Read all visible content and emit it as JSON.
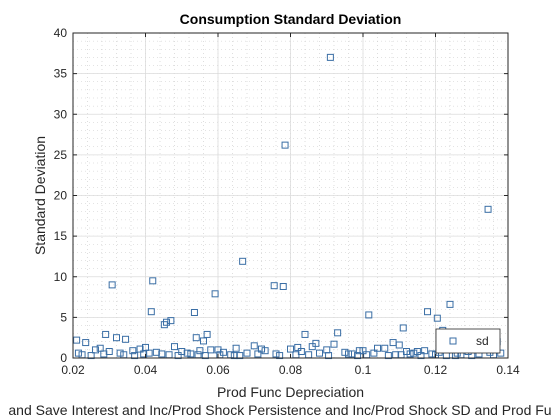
{
  "chart_data": {
    "type": "scatter",
    "title": "Consumption Standard Deviation",
    "xlabel": "Prod Func Depreciation",
    "ylabel": "Standard Deviation",
    "footer_label": "and Save Interest and Inc/Prod Shock Persistence and Inc/Prod Shock SD and Prod Fu",
    "xlim": [
      0.02,
      0.14
    ],
    "ylim": [
      0,
      40
    ],
    "xticks": [
      "0.02",
      "0.04",
      "0.06",
      "0.08",
      "0.1",
      "0.12",
      "0.14"
    ],
    "yticks": [
      "0",
      "5",
      "10",
      "15",
      "20",
      "25",
      "30",
      "35",
      "40"
    ],
    "grid": true,
    "minor_grid": true,
    "legend": {
      "placement": "bottom-right",
      "entries": [
        "sd"
      ]
    },
    "marker_color": "#3a6ea5",
    "series": [
      {
        "name": "sd",
        "marker": "square",
        "x": [
          0.0308,
          0.042,
          0.0416,
          0.0458,
          0.047,
          0.0452,
          0.0535,
          0.054,
          0.056,
          0.057,
          0.0592,
          0.0668,
          0.0755,
          0.078,
          0.0785,
          0.091,
          0.093,
          0.087,
          0.1016,
          0.1083,
          0.1111,
          0.1178,
          0.1205,
          0.124,
          0.1345,
          0.029,
          0.032,
          0.0345,
          0.06,
          0.065,
          0.07,
          0.072,
          0.082,
          0.084,
          0.086,
          0.092,
          0.099,
          0.104,
          0.11,
          0.115,
          0.122,
          0.128,
          0.131,
          0.133,
          0.137,
          0.021,
          0.0235,
          0.0262,
          0.0275,
          0.03,
          0.033,
          0.0365,
          0.0385,
          0.04,
          0.043,
          0.0445,
          0.048,
          0.05,
          0.0515,
          0.055,
          0.058,
          0.0615,
          0.0635,
          0.068,
          0.073,
          0.076,
          0.08,
          0.083,
          0.088,
          0.09,
          0.095,
          0.097,
          0.1,
          0.103,
          0.106,
          0.109,
          0.112,
          0.114,
          0.117,
          0.119,
          0.121,
          0.126,
          0.129,
          0.132,
          0.135,
          0.138,
          0.0225,
          0.025,
          0.0285,
          0.034,
          0.037,
          0.041,
          0.0465,
          0.049,
          0.0525,
          0.0565,
          0.0605,
          0.066,
          0.071,
          0.077,
          0.085,
          0.0905,
          0.096,
          0.101,
          0.107,
          0.113,
          0.116,
          0.12,
          0.123,
          0.127,
          0.13,
          0.136,
          0.0215,
          0.0395,
          0.0545,
          0.0645,
          0.0815,
          0.0985,
          0.1105,
          0.1255
        ],
        "y": [
          9.0,
          9.5,
          5.7,
          4.4,
          4.6,
          4.1,
          5.6,
          2.5,
          2.1,
          2.9,
          7.9,
          11.9,
          8.9,
          8.8,
          26.2,
          37.0,
          3.1,
          1.8,
          5.3,
          1.9,
          3.7,
          5.7,
          4.9,
          6.6,
          18.3,
          2.9,
          2.5,
          2.3,
          1.0,
          1.2,
          1.5,
          1.1,
          1.3,
          2.9,
          1.4,
          1.7,
          0.9,
          1.2,
          1.6,
          0.8,
          3.4,
          2.3,
          2.1,
          2.0,
          2.0,
          2.2,
          1.9,
          1.0,
          1.2,
          0.8,
          0.6,
          0.9,
          1.1,
          1.3,
          0.7,
          0.5,
          1.4,
          0.8,
          0.6,
          0.9,
          1.0,
          0.7,
          0.4,
          0.6,
          0.9,
          0.5,
          1.1,
          0.8,
          0.6,
          1.0,
          0.7,
          0.5,
          0.9,
          0.6,
          1.2,
          0.4,
          0.8,
          0.6,
          0.9,
          0.5,
          0.7,
          0.6,
          0.8,
          0.5,
          0.7,
          0.6,
          0.4,
          0.3,
          0.5,
          0.4,
          0.3,
          0.6,
          0.4,
          0.3,
          0.5,
          0.3,
          0.4,
          0.3,
          0.5,
          0.3,
          0.4,
          0.3,
          0.5,
          0.4,
          0.3,
          0.5,
          0.3,
          0.4,
          0.3,
          0.4,
          0.3,
          0.4,
          0.6,
          0.5,
          0.4,
          0.3,
          0.4,
          0.3,
          0.4,
          0.3
        ]
      }
    ]
  }
}
